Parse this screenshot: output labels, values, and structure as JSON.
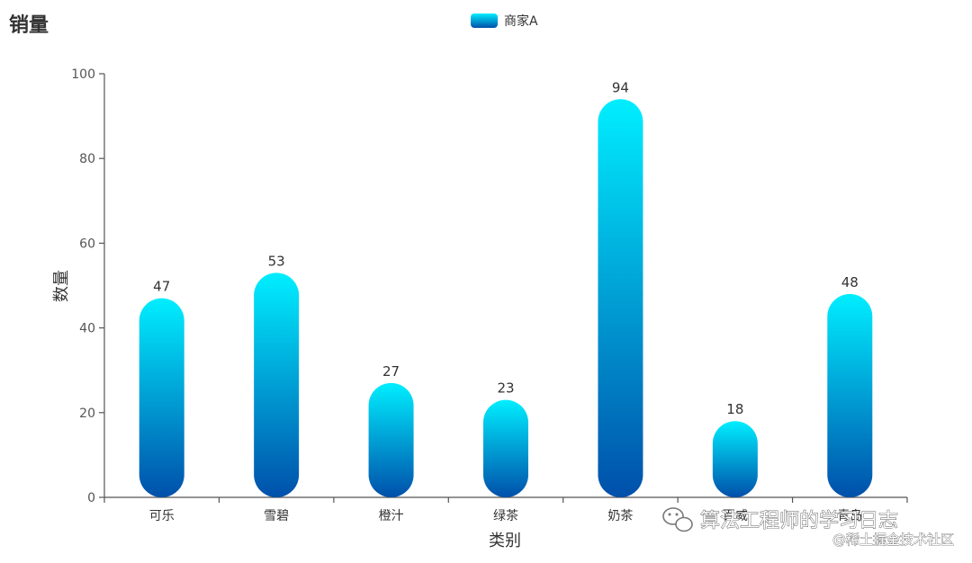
{
  "chart_data": {
    "type": "bar",
    "title": "销量",
    "legend": {
      "position": "top-center",
      "entries": [
        "商家A"
      ]
    },
    "categories": [
      "可乐",
      "雪碧",
      "橙汁",
      "绿茶",
      "奶茶",
      "百威",
      "青岛"
    ],
    "series": [
      {
        "name": "商家A",
        "values": [
          47,
          53,
          27,
          23,
          94,
          18,
          48
        ]
      }
    ],
    "xlabel": "类别",
    "ylabel": "数量",
    "ylim": [
      0,
      100
    ],
    "yticks": [
      0,
      20,
      40,
      60,
      80,
      100
    ],
    "grid": false,
    "bar_gradient": {
      "top": "#00eeff",
      "bottom": "#0050aa"
    },
    "data_labels": true
  },
  "watermark": {
    "line1": "算法工程师的学习日志",
    "line2": "@稀土掘金技术社区",
    "icon": "wechat-icon"
  }
}
